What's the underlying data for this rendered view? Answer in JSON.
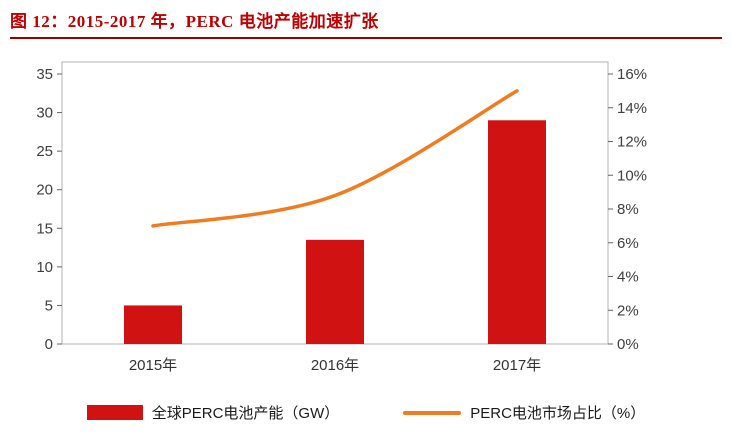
{
  "title": "图 12：2015-2017 年，PERC 电池产能加速扩张",
  "colors": {
    "title": "#c00000",
    "rule": "#990000",
    "bar": "#d01212",
    "line": "#f07c1f",
    "frame": "#b3b3b3",
    "tick": "#666666"
  },
  "legend": [
    {
      "label": "全球PERC电池产能（GW）",
      "type": "bar"
    },
    {
      "label": "PERC电池市场占比（%）",
      "type": "line"
    }
  ],
  "chart_data": {
    "type": "bar+line",
    "categories": [
      "2015年",
      "2016年",
      "2017年"
    ],
    "series": [
      {
        "name": "全球PERC电池产能（GW）",
        "type": "bar",
        "axis": "left",
        "values": [
          5,
          13.5,
          29
        ]
      },
      {
        "name": "PERC电池市场占比（%）",
        "type": "line",
        "axis": "right",
        "values": [
          7,
          8.8,
          15
        ]
      }
    ],
    "left_axis": {
      "min": 0,
      "max": 35,
      "step": 5,
      "ticks": [
        "0",
        "5",
        "10",
        "15",
        "20",
        "25",
        "30",
        "35"
      ]
    },
    "right_axis": {
      "min": 0,
      "max": 16,
      "step": 2,
      "ticks": [
        "0%",
        "2%",
        "4%",
        "6%",
        "8%",
        "10%",
        "12%",
        "14%",
        "16%"
      ]
    },
    "legend_position": "bottom",
    "grid": false,
    "title": "图 12：2015-2017 年，PERC 电池产能加速扩张"
  }
}
